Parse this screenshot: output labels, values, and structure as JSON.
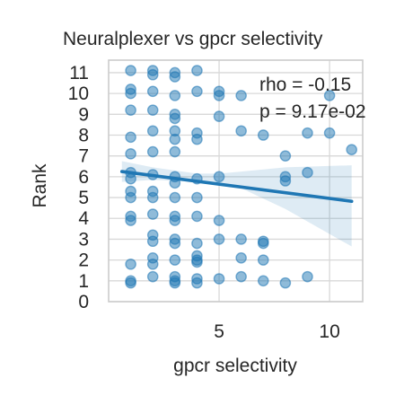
{
  "chart_data": {
    "type": "scatter",
    "title": "Neuralplexer vs gpcr selectivity",
    "xlabel": "gpcr selectivity",
    "ylabel": "Rank",
    "xlim": [
      0.0,
      11.5
    ],
    "ylim": [
      0,
      11.6
    ],
    "xticks": [
      5,
      10
    ],
    "yticks": [
      0,
      1,
      2,
      3,
      4,
      5,
      6,
      7,
      8,
      9,
      10,
      11
    ],
    "grid": true,
    "annotation": [
      "rho = -0.15",
      "p = 9.17e-02"
    ],
    "colors": {
      "points": "#1f77b4",
      "line": "#1f77b4",
      "band": "#1f77b4",
      "grid": "#d8d8d8",
      "spine": "#cccccc"
    },
    "points": [
      [
        1,
        11.1
      ],
      [
        1,
        10.2
      ],
      [
        1,
        10.0
      ],
      [
        1,
        9.2
      ],
      [
        1,
        7.9
      ],
      [
        1,
        7.1
      ],
      [
        1,
        6.2
      ],
      [
        1,
        5.9
      ],
      [
        1,
        5.3
      ],
      [
        1,
        5.0
      ],
      [
        1,
        4.1
      ],
      [
        1,
        3.9
      ],
      [
        1,
        1.8
      ],
      [
        1,
        1.0
      ],
      [
        1,
        0.9
      ],
      [
        2,
        11.1
      ],
      [
        2,
        10.9
      ],
      [
        2,
        10.1
      ],
      [
        2,
        9.2
      ],
      [
        2,
        8.2
      ],
      [
        2,
        7.2
      ],
      [
        2,
        6.1
      ],
      [
        2,
        5.3
      ],
      [
        2,
        5.0
      ],
      [
        2,
        4.2
      ],
      [
        2,
        3.2
      ],
      [
        2,
        2.9
      ],
      [
        2,
        2.1
      ],
      [
        2,
        1.8
      ],
      [
        2,
        1.2
      ],
      [
        3,
        11.0
      ],
      [
        3,
        10.8
      ],
      [
        3,
        9.9
      ],
      [
        3,
        9.0
      ],
      [
        3,
        8.8
      ],
      [
        3,
        8.2
      ],
      [
        3,
        7.8
      ],
      [
        3,
        7.2
      ],
      [
        3,
        6.0
      ],
      [
        3,
        5.7
      ],
      [
        3,
        5.0
      ],
      [
        3,
        4.1
      ],
      [
        3,
        3.9
      ],
      [
        3,
        3.0
      ],
      [
        3,
        2.8
      ],
      [
        3,
        2.0
      ],
      [
        3,
        1.2
      ],
      [
        3,
        1.0
      ],
      [
        3,
        0.9
      ],
      [
        4,
        11.1
      ],
      [
        4,
        10.1
      ],
      [
        4,
        8.1
      ],
      [
        4,
        7.8
      ],
      [
        4,
        5.9
      ],
      [
        4,
        5.0
      ],
      [
        4,
        4.1
      ],
      [
        4,
        2.8
      ],
      [
        4,
        2.2
      ],
      [
        4,
        2.0
      ],
      [
        4,
        1.9
      ],
      [
        4,
        1.1
      ],
      [
        4,
        0.9
      ],
      [
        5,
        10.1
      ],
      [
        5,
        9.9
      ],
      [
        5,
        8.9
      ],
      [
        5,
        6.0
      ],
      [
        5,
        3.9
      ],
      [
        5,
        3.0
      ],
      [
        5,
        1.1
      ],
      [
        6,
        9.9
      ],
      [
        6,
        8.2
      ],
      [
        6,
        3.0
      ],
      [
        6,
        2.1
      ],
      [
        6,
        1.2
      ],
      [
        7,
        8.0
      ],
      [
        7,
        2.9
      ],
      [
        7,
        2.8
      ],
      [
        7,
        2.0
      ],
      [
        7,
        1.0
      ],
      [
        8,
        7.0
      ],
      [
        8,
        6.0
      ],
      [
        8,
        5.8
      ],
      [
        8,
        0.9
      ],
      [
        9,
        8.1
      ],
      [
        9,
        6.2
      ],
      [
        9,
        1.2
      ],
      [
        10,
        9.9
      ],
      [
        10,
        8.1
      ],
      [
        11,
        7.3
      ]
    ],
    "regression": {
      "x": [
        0.6,
        11.0
      ],
      "y": [
        6.25,
        4.82
      ]
    },
    "confidence_band": {
      "x": [
        0.6,
        2.0,
        4.0,
        5.0,
        6.0,
        8.0,
        11.0
      ],
      "upper": [
        6.75,
        6.45,
        6.15,
        6.15,
        6.25,
        6.45,
        6.55
      ],
      "lower": [
        5.75,
        5.85,
        5.75,
        5.65,
        5.45,
        4.45,
        2.65
      ]
    }
  }
}
